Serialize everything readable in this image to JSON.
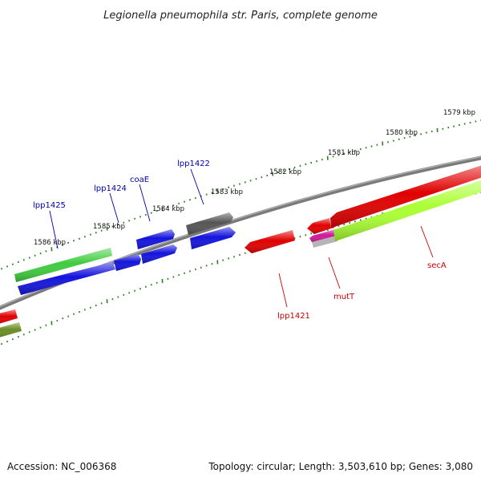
{
  "title": "Legionella pneumophila str. Paris, complete genome",
  "footer": {
    "accession": "Accession: NC_006368",
    "summary": "Topology: circular; Length: 3,503,610 bp; Genes: 3,080"
  },
  "colors": {
    "backbone": "#888888",
    "tick": "#2f7d22",
    "forward_label": "#0000aa",
    "reverse_label": "#cc0000"
  },
  "scale_labels": [
    "1579 kbp",
    "1580 kbp",
    "1581 kbp",
    "1582 kbp",
    "1583 kbp",
    "1584 kbp",
    "1585 kbp",
    "1586 kbp"
  ],
  "genes": {
    "lpp1425": "lpp1425",
    "lpp1424": "lpp1424",
    "coaE": "coaE",
    "lpp1422": "lpp1422",
    "lpp1421": "lpp1421",
    "mutT": "mutT",
    "secA": "secA"
  }
}
